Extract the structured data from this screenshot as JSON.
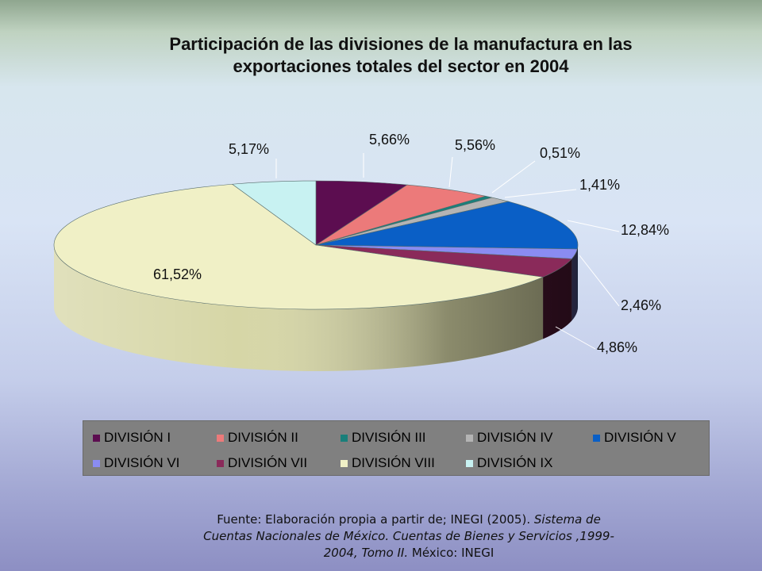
{
  "chart_data": {
    "type": "pie",
    "title_line1": "Participación de las divisiones de la manufactura en las",
    "title_line2": "exportaciones totales del sector en 2004",
    "slices": [
      {
        "name": "DIVISIÓN I",
        "value": 5.66,
        "label": "5,66%",
        "color": "#5c0d50"
      },
      {
        "name": "DIVISIÓN II",
        "value": 5.56,
        "label": "5,56%",
        "color": "#ec7a7a"
      },
      {
        "name": "DIVISIÓN III",
        "value": 0.51,
        "label": "0,51%",
        "color": "#1a7f7a"
      },
      {
        "name": "DIVISIÓN IV",
        "value": 1.41,
        "label": "1,41%",
        "color": "#b4b4b4"
      },
      {
        "name": "DIVISIÓN V",
        "value": 12.84,
        "label": "12,84%",
        "color": "#0a5fc6"
      },
      {
        "name": "DIVISIÓN VI",
        "value": 2.46,
        "label": "2,46%",
        "color": "#8a8cf2"
      },
      {
        "name": "DIVISIÓN VII",
        "value": 4.86,
        "label": "4,86%",
        "color": "#8a2a5a"
      },
      {
        "name": "DIVISIÓN VIII",
        "value": 61.52,
        "label": "61,52%",
        "color": "#f0f0c6"
      },
      {
        "name": "DIVISIÓN IX",
        "value": 5.17,
        "label": "5,17%",
        "color": "#c8f2f2"
      }
    ],
    "legend_position": "bottom"
  },
  "source": {
    "line1_a": "Fuente: Elaboración propia a partir de; INEGI (2005). ",
    "line1_b": "Sistema de",
    "line2": "Cuentas Nacionales de México. Cuentas de Bienes y Servicios ,1999-",
    "line3_a": "2004, Tomo II.",
    "line3_b": " México: INEGI"
  }
}
